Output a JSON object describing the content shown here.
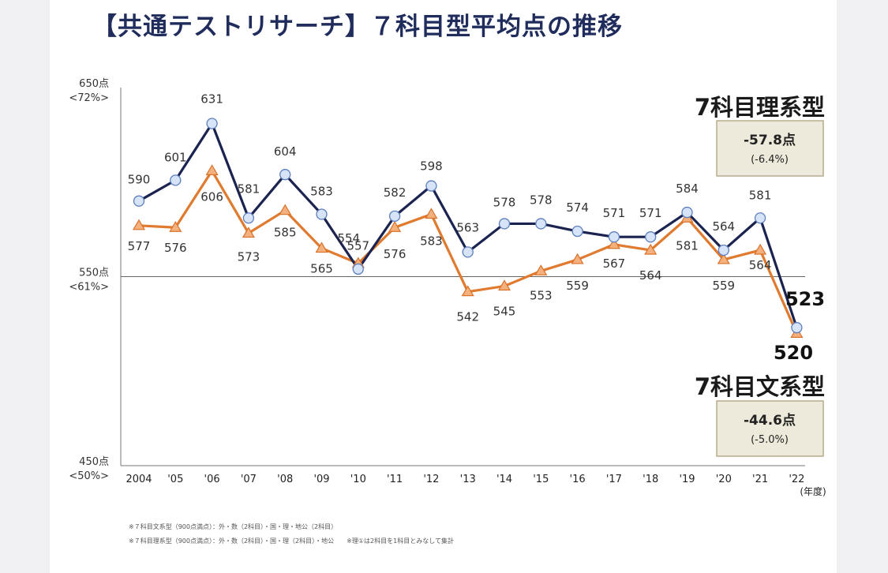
{
  "title": "【共通テストリサーチ】７科目型平均点の推移",
  "chart_data": {
    "type": "line",
    "categories": [
      "2004",
      "'05",
      "'06",
      "'07",
      "'08",
      "'09",
      "'10",
      "'11",
      "'12",
      "'13",
      "'14",
      "'15",
      "'16",
      "'17",
      "'18",
      "'19",
      "'20",
      "'21",
      "'22"
    ],
    "x_unit": "(年度)",
    "y_ticks": [
      {
        "value": 650,
        "label": "650点",
        "pct": "<72%>"
      },
      {
        "value": 550,
        "label": "550点",
        "pct": "<61%>"
      },
      {
        "value": 450,
        "label": "450点",
        "pct": "<50%>"
      }
    ],
    "ylim": [
      450,
      650
    ],
    "reference_line": 550,
    "series": [
      {
        "name": "7科目理系型",
        "color": "#1b2350",
        "marker": "circle",
        "values": [
          590,
          601,
          631,
          581,
          604,
          583,
          554,
          582,
          598,
          563,
          578,
          578,
          574,
          571,
          571,
          584,
          564,
          581,
          523
        ],
        "change_points": "-57.8点",
        "change_pct": "(-6.4%)"
      },
      {
        "name": "7科目文系型",
        "color": "#e07a2e",
        "marker": "triangle",
        "values": [
          577,
          576,
          606,
          573,
          585,
          565,
          557,
          576,
          583,
          542,
          545,
          553,
          559,
          567,
          564,
          581,
          559,
          564,
          520
        ],
        "change_points": "-44.6点",
        "change_pct": "(-5.0%)"
      }
    ]
  },
  "notes": [
    "※７科目文系型（900点満点）：外・数（2科目）・国・理・地公（2科目）",
    "※７科目理系型（900点満点）：外・数（2科目）・国・理（2科目）・地公　　※理①は2科目を1科目とみなして集計"
  ]
}
